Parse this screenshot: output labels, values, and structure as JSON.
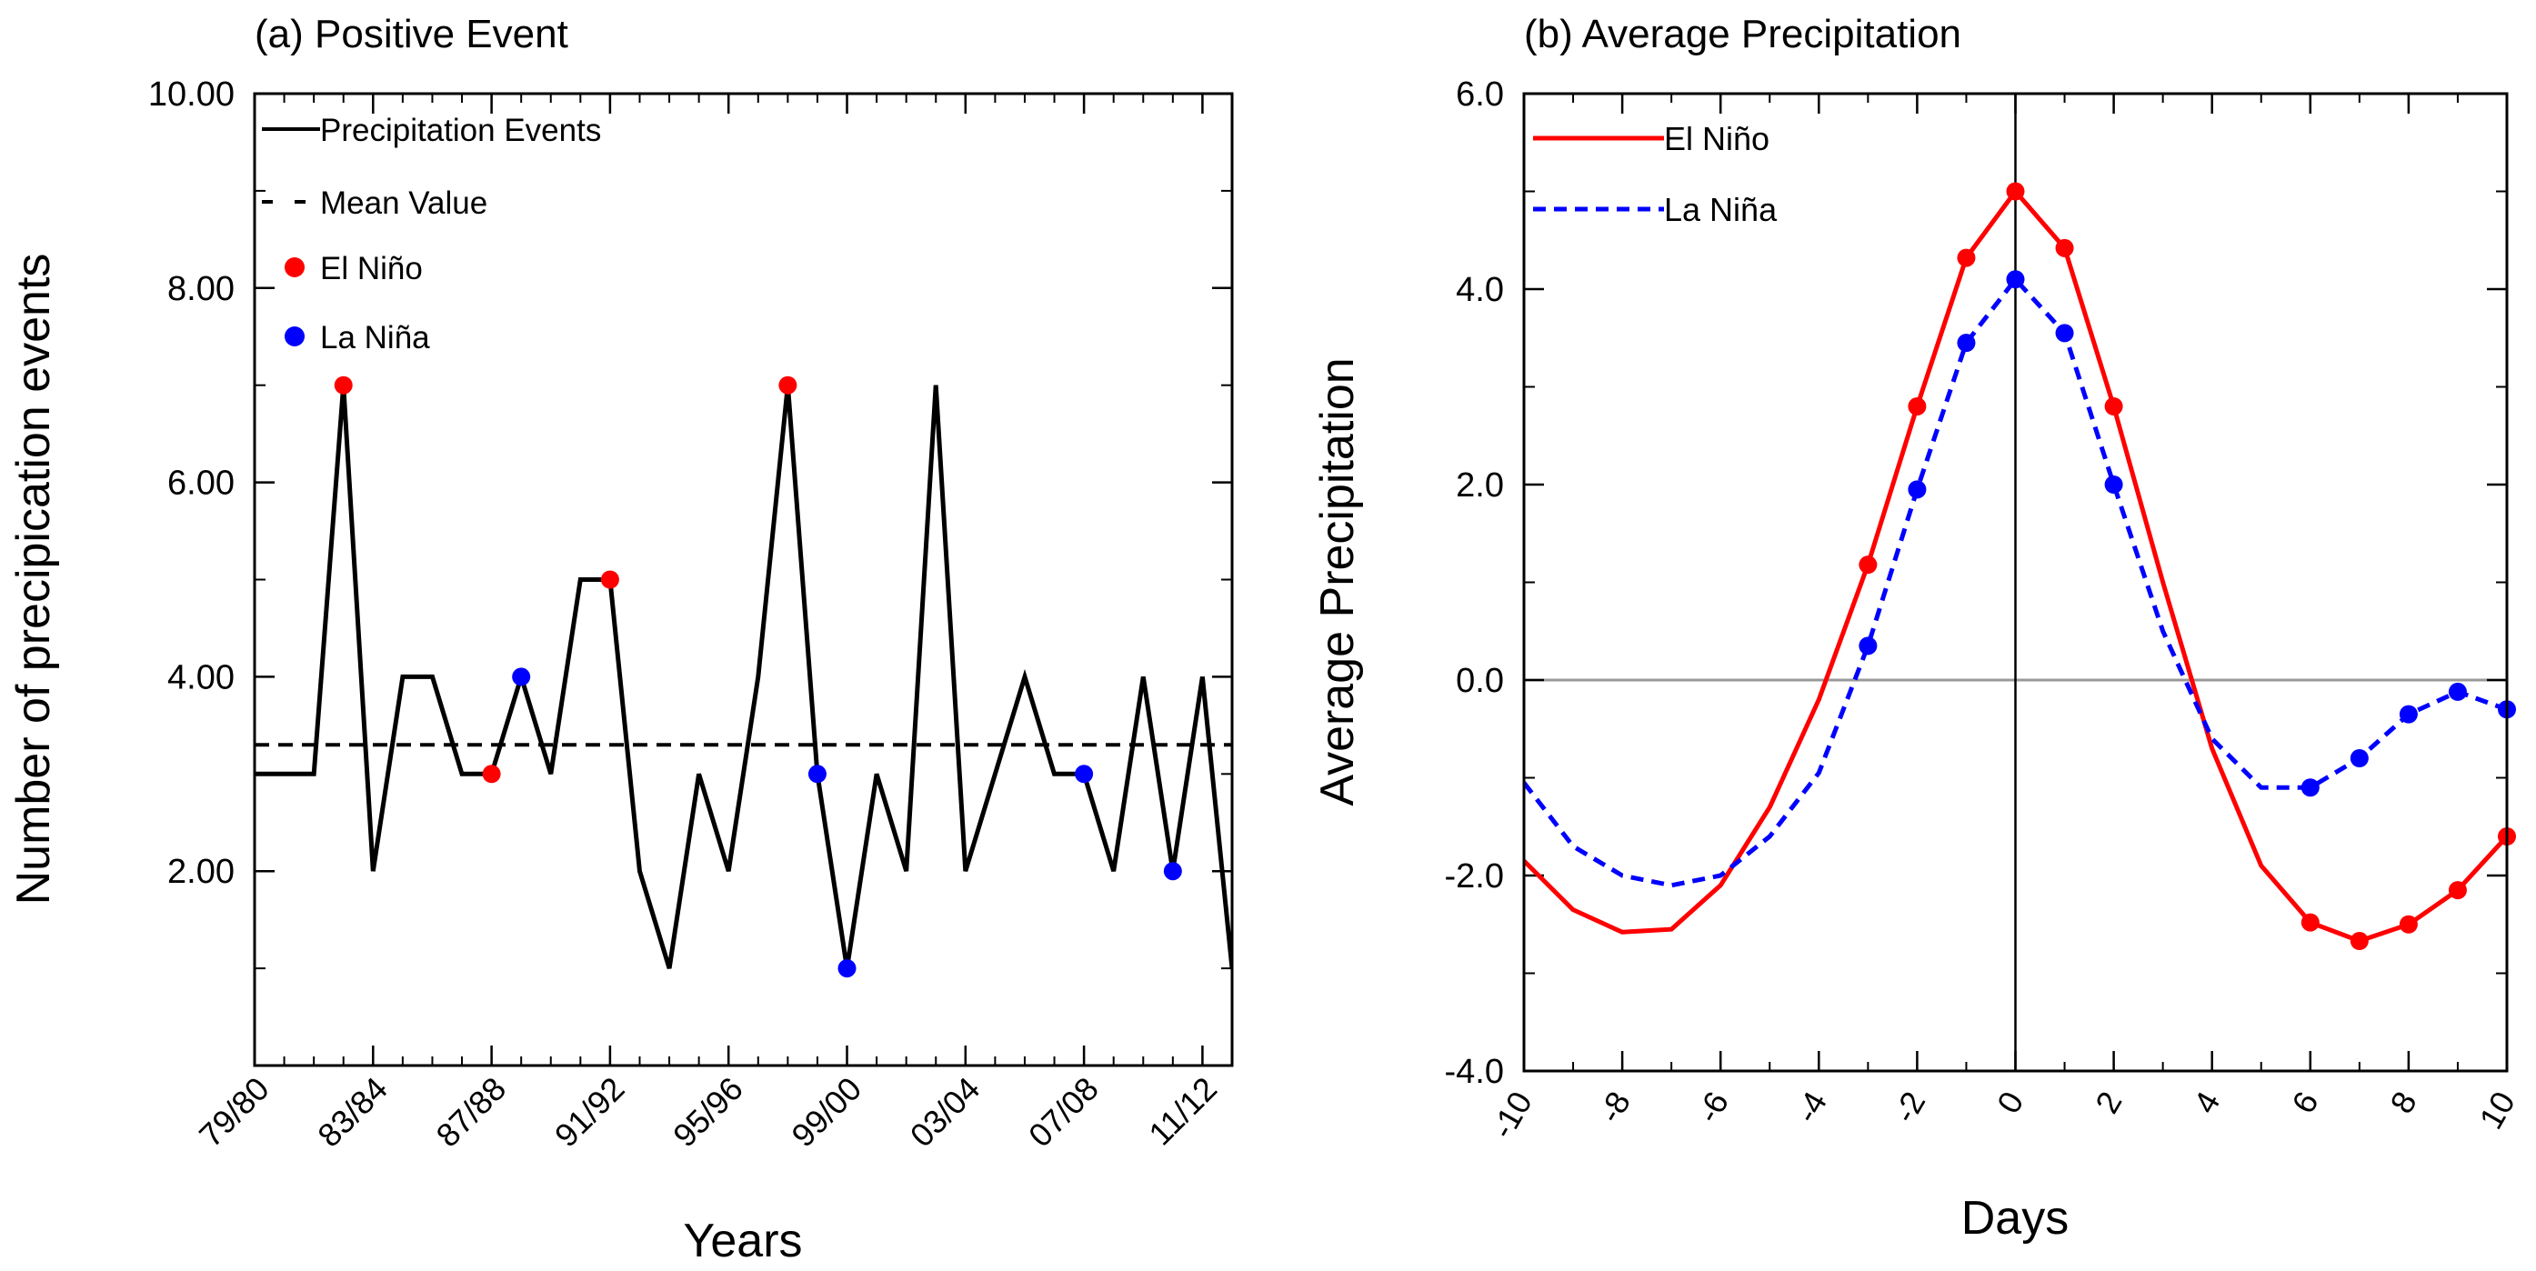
{
  "chart_data": [
    {
      "id": "a",
      "type": "line",
      "title": "(a) Positive Event",
      "xlabel": "Years",
      "ylabel": "Number of precipication events",
      "ylim": [
        0,
        10
      ],
      "xlim": [
        1979,
        2012
      ],
      "yticks": [
        "10.00",
        "8.00",
        "6.00",
        "4.00",
        "2.00"
      ],
      "ytick_values": [
        10,
        8,
        6,
        4,
        2
      ],
      "xticks": [
        "79/80",
        "83/84",
        "87/88",
        "91/92",
        "95/96",
        "99/00",
        "03/04",
        "07/08",
        "11/12"
      ],
      "xtick_values": [
        1979,
        1983,
        1987,
        1991,
        1995,
        1999,
        2003,
        2007,
        2011
      ],
      "series": [
        {
          "name": "Precipitation Events",
          "color": "#000000",
          "style": "solid",
          "x": [
            1979,
            1980,
            1981,
            1982,
            1983,
            1984,
            1985,
            1986,
            1987,
            1988,
            1989,
            1990,
            1991,
            1992,
            1993,
            1994,
            1995,
            1996,
            1997,
            1998,
            1999,
            2000,
            2001,
            2002,
            2003,
            2004,
            2005,
            2006,
            2007,
            2008,
            2009,
            2010,
            2011,
            2012
          ],
          "values": [
            3,
            3,
            3,
            7,
            2,
            4,
            4,
            3,
            3,
            4,
            3,
            5,
            5,
            2,
            1,
            3,
            2,
            4,
            7,
            3,
            1,
            3,
            2,
            7,
            2,
            3,
            4,
            3,
            3,
            2,
            4,
            2,
            4,
            1
          ]
        },
        {
          "name": "Mean Value",
          "color": "#000000",
          "style": "dashed",
          "values": [
            3.3
          ]
        }
      ],
      "markers": [
        {
          "name": "El Niño",
          "color": "#ff0000",
          "x": [
            1982,
            1987,
            1991,
            1997
          ],
          "values": [
            7,
            3,
            5,
            7
          ]
        },
        {
          "name": "La Niña",
          "color": "#0000ff",
          "x": [
            1988,
            1998,
            1999,
            2007,
            2010
          ],
          "values": [
            4,
            3,
            1,
            3,
            2
          ]
        }
      ],
      "legend": [
        "Precipitation Events",
        "Mean Value",
        "El Niño",
        "La Niña"
      ]
    },
    {
      "id": "b",
      "type": "line",
      "title": "(b) Average Precipitation",
      "xlabel": "Days",
      "ylabel": "Average Precipitation",
      "ylim": [
        -4,
        6
      ],
      "xlim": [
        -10,
        10
      ],
      "yticks": [
        "6.0",
        "4.0",
        "2.0",
        "0.0",
        "-2.0",
        "-4.0"
      ],
      "ytick_values": [
        6,
        4,
        2,
        0,
        -2,
        -4
      ],
      "xticks": [
        "-10",
        "-8",
        "-6",
        "-4",
        "-2",
        "0",
        "2",
        "4",
        "6",
        "8",
        "10"
      ],
      "xtick_values": [
        -10,
        -8,
        -6,
        -4,
        -2,
        0,
        2,
        4,
        6,
        8,
        10
      ],
      "series": [
        {
          "name": "El Niño",
          "color": "#ff0000",
          "style": "solid",
          "x": [
            -10,
            -9,
            -8,
            -7,
            -6,
            -5,
            -4,
            -3,
            -2,
            -1,
            0,
            1,
            2,
            3,
            4,
            5,
            6,
            7,
            8,
            9,
            10
          ],
          "values": [
            -1.85,
            -2.35,
            -2.58,
            -2.55,
            -2.1,
            -1.3,
            -0.2,
            1.18,
            2.8,
            4.32,
            5.0,
            4.42,
            2.8,
            1.0,
            -0.7,
            -1.9,
            -2.48,
            -2.67,
            -2.5,
            -2.15,
            -1.6
          ],
          "marker_x": [
            -3,
            -2,
            -1,
            0,
            1,
            2,
            6,
            7,
            8,
            9,
            10
          ]
        },
        {
          "name": "La Niña",
          "color": "#0000ff",
          "style": "dashed",
          "x": [
            -10,
            -9,
            -8,
            -7,
            -6,
            -5,
            -4,
            -3,
            -2,
            -1,
            0,
            1,
            2,
            3,
            4,
            5,
            6,
            7,
            8,
            9,
            10
          ],
          "values": [
            -1.05,
            -1.7,
            -2.0,
            -2.1,
            -2.0,
            -1.6,
            -0.95,
            0.35,
            1.95,
            3.45,
            4.1,
            3.55,
            2.0,
            0.5,
            -0.6,
            -1.1,
            -1.1,
            -0.8,
            -0.35,
            -0.12,
            -0.3
          ],
          "marker_x": [
            -3,
            -2,
            -1,
            0,
            1,
            2,
            6,
            7,
            8,
            9,
            10
          ]
        }
      ],
      "legend": [
        "El Niño",
        "La Niña"
      ]
    }
  ]
}
